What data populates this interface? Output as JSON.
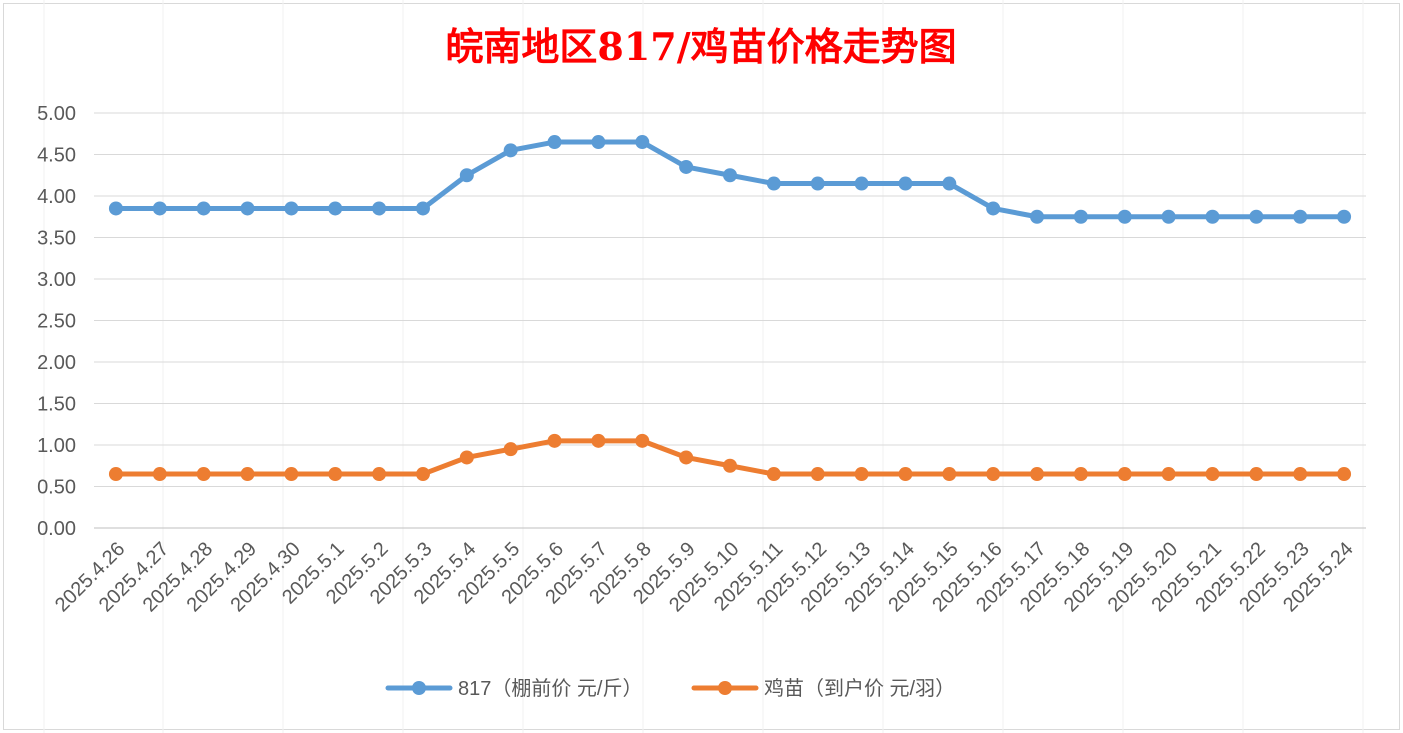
{
  "chart_data": {
    "type": "line",
    "title": "皖南地区817/鸡苗价格走势图",
    "title_color": "#ff0000",
    "categories": [
      "2025.4.26",
      "2025.4.27",
      "2025.4.28",
      "2025.4.29",
      "2025.4.30",
      "2025.5.1",
      "2025.5.2",
      "2025.5.3",
      "2025.5.4",
      "2025.5.5",
      "2025.5.6",
      "2025.5.7",
      "2025.5.8",
      "2025.5.9",
      "2025.5.10",
      "2025.5.11",
      "2025.5.12",
      "2025.5.13",
      "2025.5.14",
      "2025.5.15",
      "2025.5.16",
      "2025.5.17",
      "2025.5.18",
      "2025.5.19",
      "2025.5.20",
      "2025.5.21",
      "2025.5.22",
      "2025.5.23",
      "2025.5.24"
    ],
    "series": [
      {
        "name": "817（棚前价 元/斤）",
        "color": "#5b9bd5",
        "values": [
          3.85,
          3.85,
          3.85,
          3.85,
          3.85,
          3.85,
          3.85,
          3.85,
          4.25,
          4.55,
          4.65,
          4.65,
          4.65,
          4.35,
          4.25,
          4.15,
          4.15,
          4.15,
          4.15,
          4.15,
          3.85,
          3.75,
          3.75,
          3.75,
          3.75,
          3.75,
          3.75,
          3.75,
          3.75
        ]
      },
      {
        "name": "鸡苗（到户价 元/羽）",
        "color": "#ed7d31",
        "values": [
          0.65,
          0.65,
          0.65,
          0.65,
          0.65,
          0.65,
          0.65,
          0.65,
          0.85,
          0.95,
          1.05,
          1.05,
          1.05,
          0.85,
          0.75,
          0.65,
          0.65,
          0.65,
          0.65,
          0.65,
          0.65,
          0.65,
          0.65,
          0.65,
          0.65,
          0.65,
          0.65,
          0.65,
          0.65
        ]
      }
    ],
    "yticks": [
      "0.00",
      "0.50",
      "1.00",
      "1.50",
      "2.00",
      "2.50",
      "3.00",
      "3.50",
      "4.00",
      "4.50",
      "5.00"
    ],
    "ylim": [
      0,
      5
    ],
    "grid": "horizontal",
    "legend_position": "bottom"
  }
}
